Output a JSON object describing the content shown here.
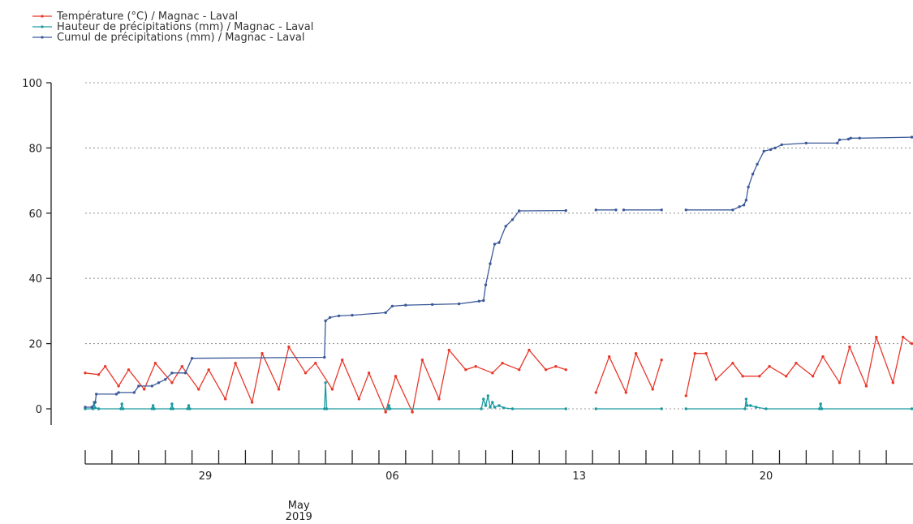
{
  "chart_data": {
    "type": "line",
    "title": "",
    "xlabel": "",
    "ylabel": "",
    "ylim": [
      0,
      100
    ],
    "xlim": [
      "2019-04-23T00:00",
      "2019-05-24T00:00"
    ],
    "y_ticks": [
      0,
      20,
      40,
      60,
      80,
      100
    ],
    "y_grid": "dotted",
    "legend_position": "top-left",
    "x_day_ticks": [
      "2019-04-23",
      "2019-04-24",
      "2019-04-25",
      "2019-04-26",
      "2019-04-27",
      "2019-04-28",
      "2019-04-29",
      "2019-04-30",
      "2019-05-01",
      "2019-05-02",
      "2019-05-03",
      "2019-05-04",
      "2019-05-05",
      "2019-05-06",
      "2019-05-07",
      "2019-05-08",
      "2019-05-09",
      "2019-05-10",
      "2019-05-11",
      "2019-05-12",
      "2019-05-13",
      "2019-05-14",
      "2019-05-15",
      "2019-05-16",
      "2019-05-17",
      "2019-05-18",
      "2019-05-19",
      "2019-05-20",
      "2019-05-21",
      "2019-05-22",
      "2019-05-23"
    ],
    "x_labels": [
      {
        "date": "2019-04-27T12:00",
        "label": "29"
      },
      {
        "date": "2019-05-04T12:00",
        "label": "06"
      },
      {
        "date": "2019-05-11T12:00",
        "label": "13"
      },
      {
        "date": "2019-05-18T12:00",
        "label": "20"
      }
    ],
    "x_period_label": {
      "date": "2019-05-01T00:00",
      "month": "May",
      "year": "2019"
    },
    "series": [
      {
        "name": "Température (°C) / Magnac - Laval",
        "color": "#e8382b",
        "x": [
          "2019-04-23T00:00",
          "2019-04-23T12:00",
          "2019-04-23T18:00",
          "2019-04-24T06:00",
          "2019-04-24T15:00",
          "2019-04-25T05:00",
          "2019-04-25T15:00",
          "2019-04-26T06:00",
          "2019-04-26T15:00",
          "2019-04-27T06:00",
          "2019-04-27T15:00",
          "2019-04-28T06:00",
          "2019-04-28T15:00",
          "2019-04-29T06:00",
          "2019-04-29T15:00",
          "2019-04-30T06:00",
          "2019-04-30T15:00",
          "2019-05-01T06:00",
          "2019-05-01T15:00",
          "2019-05-02T06:00",
          "2019-05-02T15:00",
          "2019-05-03T06:00",
          "2019-05-03T15:00",
          "2019-05-04T06:00",
          "2019-05-04T15:00",
          "2019-05-05T06:00",
          "2019-05-05T15:00",
          "2019-05-06T06:00",
          "2019-05-06T15:00",
          "2019-05-07T06:00",
          "2019-05-07T15:00",
          "2019-05-08T06:00",
          "2019-05-08T15:00",
          "2019-05-09T06:00",
          "2019-05-09T15:00",
          "2019-05-10T06:00",
          "2019-05-10T15:00",
          "2019-05-11T00:00",
          null,
          "2019-05-12T03:00",
          "2019-05-12T15:00",
          "2019-05-13T06:00",
          "2019-05-13T15:00",
          "2019-05-14T06:00",
          "2019-05-14T14:00",
          null,
          "2019-05-15T12:00",
          "2019-05-15T20:00",
          "2019-05-16T06:00",
          "2019-05-16T15:00",
          "2019-05-17T06:00",
          "2019-05-17T15:00",
          "2019-05-18T06:00",
          "2019-05-18T15:00",
          "2019-05-19T06:00",
          "2019-05-19T15:00",
          "2019-05-20T06:00",
          "2019-05-20T15:00",
          "2019-05-21T06:00",
          "2019-05-21T15:00",
          "2019-05-22T06:00",
          "2019-05-22T15:00",
          "2019-05-23T06:00",
          "2019-05-23T15:00",
          "2019-05-23T23:00"
        ],
        "y": [
          11,
          10.5,
          13,
          7,
          12,
          6,
          14,
          8,
          13,
          6,
          12,
          3,
          14,
          2,
          17,
          6,
          19,
          11,
          14,
          6,
          15,
          3,
          11,
          -1,
          10,
          -1,
          15,
          3,
          18,
          12,
          13,
          11,
          14,
          12,
          18,
          12,
          13,
          12,
          null,
          5,
          16,
          5,
          17,
          6,
          15,
          null,
          4,
          17,
          17,
          9,
          14,
          10,
          10,
          13,
          10,
          14,
          10,
          16,
          8,
          19,
          7,
          22,
          8,
          22,
          20
        ]
      },
      {
        "name": "Hauteur de précipitations (mm) / Magnac - Laval",
        "color": "#1a9aa0",
        "x": [
          "2019-04-23T00:00",
          "2019-04-23T07:00",
          "2019-04-23T08:00",
          "2019-04-23T09:00",
          "2019-04-23T12:00",
          "2019-04-24T08:00",
          "2019-04-24T09:00",
          "2019-04-24T10:00",
          "2019-04-25T12:00",
          "2019-04-25T13:00",
          "2019-04-25T14:00",
          "2019-04-26T05:00",
          "2019-04-26T06:00",
          "2019-04-26T07:00",
          "2019-04-26T20:00",
          "2019-04-26T21:00",
          "2019-04-26T22:00",
          "2019-05-01T23:00",
          "2019-05-02T00:00",
          "2019-05-02T01:00",
          "2019-05-04T08:00",
          "2019-05-04T09:00",
          "2019-05-04T10:00",
          "2019-05-07T20:00",
          "2019-05-07T22:00",
          "2019-05-08T00:00",
          "2019-05-08T02:00",
          "2019-05-08T04:00",
          "2019-05-08T06:00",
          "2019-05-08T08:00",
          "2019-05-08T12:00",
          "2019-05-08T16:00",
          "2019-05-09T00:00",
          "2019-05-11T00:00",
          null,
          "2019-05-12T03:00",
          "2019-05-14T14:00",
          null,
          "2019-05-15T12:00",
          "2019-05-17T17:00",
          "2019-05-17T18:00",
          "2019-05-17T19:00",
          "2019-05-17T22:00",
          "2019-05-18T03:00",
          "2019-05-18T12:00",
          "2019-05-20T12:00",
          "2019-05-20T13:00",
          "2019-05-20T14:00",
          "2019-05-23T23:00"
        ],
        "y": [
          0,
          0,
          2,
          0.3,
          0,
          0,
          1.5,
          0,
          0,
          1,
          0,
          0,
          1.5,
          0,
          0,
          1,
          0,
          0,
          8,
          0,
          0,
          1,
          0,
          0,
          3,
          1,
          4,
          0.5,
          2,
          0.5,
          1,
          0.3,
          0,
          0,
          null,
          0,
          0,
          null,
          0,
          0,
          3,
          1,
          1,
          0.5,
          0,
          0,
          1.5,
          0,
          0
        ]
      },
      {
        "name": "Cumul de précipitations (mm) / Magnac - Laval",
        "color": "#3b5998",
        "x": [
          "2019-04-23T00:00",
          "2019-04-23T06:00",
          "2019-04-23T09:00",
          "2019-04-23T10:00",
          "2019-04-24T04:00",
          "2019-04-24T06:00",
          "2019-04-24T20:00",
          "2019-04-25T00:00",
          "2019-04-25T12:00",
          "2019-04-25T18:00",
          "2019-04-26T00:00",
          "2019-04-26T06:00",
          "2019-04-26T18:00",
          "2019-04-27T00:00",
          "2019-05-01T23:00",
          "2019-05-02T00:00",
          "2019-05-02T04:00",
          "2019-05-02T12:00",
          "2019-05-03T00:00",
          "2019-05-04T06:00",
          "2019-05-04T12:00",
          "2019-05-05T00:00",
          "2019-05-06T00:00",
          "2019-05-07T00:00",
          "2019-05-07T18:00",
          "2019-05-07T22:00",
          "2019-05-08T00:00",
          "2019-05-08T04:00",
          "2019-05-08T08:00",
          "2019-05-08T12:00",
          "2019-05-08T18:00",
          "2019-05-09T00:00",
          "2019-05-09T06:00",
          "2019-05-11T00:00",
          null,
          "2019-05-12T03:00",
          "2019-05-12T21:00",
          null,
          "2019-05-13T04:00",
          "2019-05-14T14:00",
          null,
          "2019-05-15T12:00",
          "2019-05-17T06:00",
          "2019-05-17T12:00",
          "2019-05-17T16:00",
          "2019-05-17T18:00",
          "2019-05-17T20:00",
          "2019-05-18T00:00",
          "2019-05-18T04:00",
          "2019-05-18T10:00",
          "2019-05-18T16:00",
          "2019-05-18T20:00",
          "2019-05-19T02:00",
          "2019-05-20T00:00",
          "2019-05-21T04:00",
          "2019-05-21T06:00",
          "2019-05-21T14:00",
          "2019-05-21T16:00",
          "2019-05-22T00:00",
          "2019-05-23T23:00"
        ],
        "y": [
          0.5,
          0.5,
          2,
          4.5,
          4.5,
          5,
          5,
          7,
          7,
          8,
          9,
          11,
          11,
          15.5,
          15.8,
          27,
          28,
          28.5,
          28.7,
          29.5,
          31.5,
          31.8,
          32,
          32.2,
          33,
          33.2,
          38,
          44.5,
          50.5,
          51,
          56,
          58,
          60.7,
          60.8,
          null,
          61,
          61,
          null,
          61,
          61,
          null,
          61,
          61,
          62,
          62.5,
          64,
          68,
          72,
          75,
          79,
          79.5,
          80,
          81,
          81.5,
          81.5,
          82.5,
          82.7,
          83,
          83,
          83.3
        ]
      }
    ]
  }
}
